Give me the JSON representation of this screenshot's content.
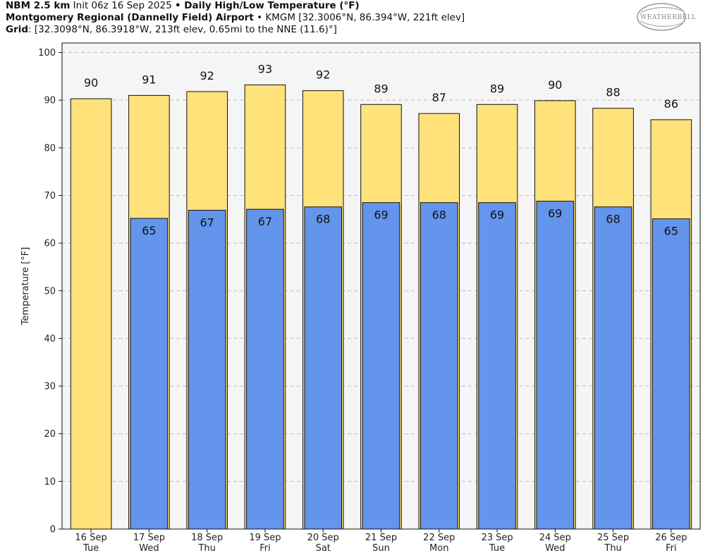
{
  "header": {
    "line1": {
      "model": "NBM 2.5 km",
      "init": " Init 06z 16 Sep 2025 ",
      "sep": "•",
      "product": " Daily High/Low Temperature (°F)"
    },
    "line2": {
      "station": "Montgomery Regional (Dannelly Field) Airport",
      "sep": " • ",
      "station_info": "KMGM [32.3006°N, 86.394°W, 221ft elev]"
    },
    "line3": {
      "grid_label": "Grid",
      "grid_info": ": [32.3098°N, 86.3918°W, 213ft elev, 0.65mi to the NNE (11.6)°]"
    }
  },
  "logo": {
    "text": "WEATHERBELL"
  },
  "colors": {
    "high": "#ffe27a",
    "low": "#6495ed",
    "plot_bg": "#f5f5f5",
    "grid": "#bbbbbb",
    "edge": "#111111"
  },
  "chart_data": {
    "type": "bar",
    "title": "Daily High/Low Temperature (°F)",
    "xlabel": "",
    "ylabel": "Temperature [°F]",
    "ylim": [
      0,
      102
    ],
    "yticks": [
      0,
      10,
      20,
      30,
      40,
      50,
      60,
      70,
      80,
      90,
      100
    ],
    "grid": true,
    "categories": [
      {
        "date": "16 Sep",
        "day": "Tue"
      },
      {
        "date": "17 Sep",
        "day": "Wed"
      },
      {
        "date": "18 Sep",
        "day": "Thu"
      },
      {
        "date": "19 Sep",
        "day": "Fri"
      },
      {
        "date": "20 Sep",
        "day": "Sat"
      },
      {
        "date": "21 Sep",
        "day": "Sun"
      },
      {
        "date": "22 Sep",
        "day": "Mon"
      },
      {
        "date": "23 Sep",
        "day": "Tue"
      },
      {
        "date": "24 Sep",
        "day": "Wed"
      },
      {
        "date": "25 Sep",
        "day": "Thu"
      },
      {
        "date": "26 Sep",
        "day": "Fri"
      }
    ],
    "series": [
      {
        "name": "High",
        "values": [
          90.3,
          91.0,
          91.8,
          93.2,
          92.0,
          89.1,
          87.2,
          89.1,
          89.9,
          88.3,
          85.9
        ],
        "labels": [
          "90",
          "91",
          "92",
          "93",
          "92",
          "89",
          "87",
          "89",
          "90",
          "88",
          "86"
        ]
      },
      {
        "name": "Low",
        "values": [
          null,
          65.2,
          66.9,
          67.1,
          67.6,
          68.5,
          68.5,
          68.5,
          68.8,
          67.6,
          65.1
        ],
        "labels": [
          null,
          "65",
          "67",
          "67",
          "68",
          "69",
          "68",
          "69",
          "69",
          "68",
          "65"
        ]
      }
    ]
  }
}
